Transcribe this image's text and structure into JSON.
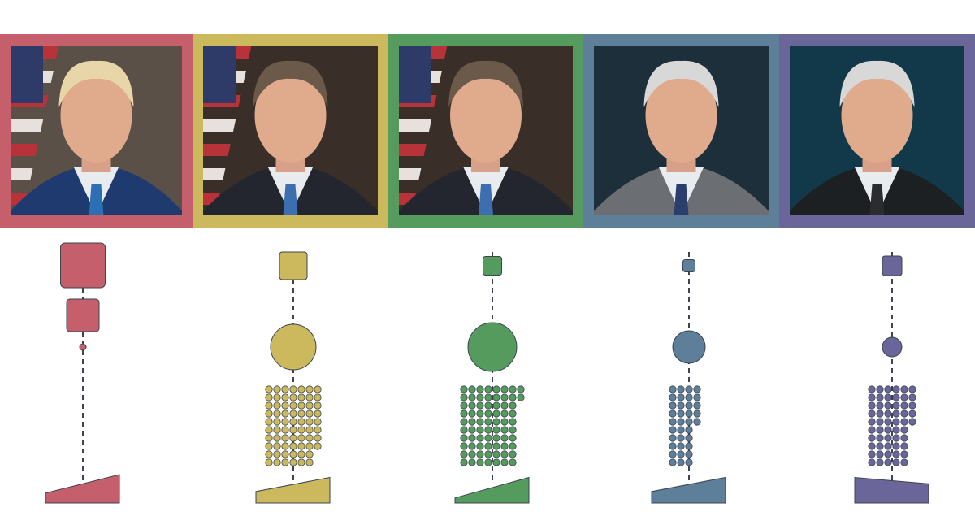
{
  "stroke_color": "#3d4450",
  "columns": [
    {
      "id": "red",
      "color": "#c45f6b",
      "photo": {
        "background": "#5a5048",
        "suit": "#1f3a6e",
        "tie": "#2c6fb3",
        "flag": true
      },
      "squares": [
        55,
        40
      ],
      "circle": 4,
      "dots": 0,
      "dot_columns": 0,
      "slope": [
        0.35,
        1.0
      ]
    },
    {
      "id": "yellow",
      "color": "#ccb95e",
      "photo": {
        "background": "#3a2e28",
        "suit": "#23262e",
        "tie": "#3d6fb0",
        "flag": true
      },
      "squares": [
        34
      ],
      "circle": 28,
      "dots": 68,
      "dot_columns": 7,
      "slope": [
        0.45,
        1.0
      ]
    },
    {
      "id": "green",
      "color": "#569b5e",
      "photo": {
        "background": "#3a2e28",
        "suit": "#23262e",
        "tie": "#3d6fb0",
        "flag": true
      },
      "squares": [
        23
      ],
      "circle": 30,
      "dots": 72,
      "dot_columns": 8,
      "slope": [
        0.2,
        1.0
      ]
    },
    {
      "id": "blue",
      "color": "#5d7f99",
      "photo": {
        "background": "#1c2f3a",
        "suit": "#6b6e72",
        "tie": "#2b3d6a",
        "flag": false
      },
      "squares": [
        15
      ],
      "circle": 20,
      "dots": 35,
      "dot_columns": 4,
      "slope": [
        0.45,
        1.0
      ]
    },
    {
      "id": "purple",
      "color": "#6a6699",
      "photo": {
        "background": "#12394a",
        "suit": "#1d2022",
        "tie": "#2a2c30",
        "flag": false
      },
      "squares": [
        24
      ],
      "circle": 12,
      "dots": 55,
      "dot_columns": 6,
      "slope": [
        1.0,
        0.75
      ]
    }
  ]
}
